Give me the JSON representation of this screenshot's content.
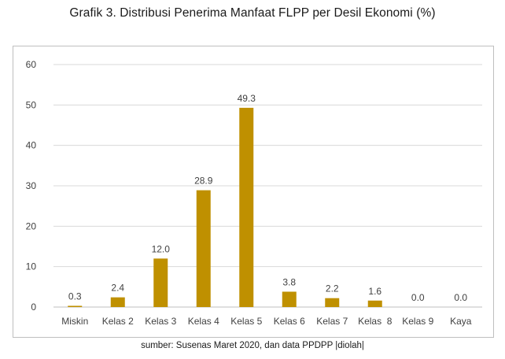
{
  "title": "Grafik 3. Distribusi Penerima Manfaat FLPP per Desil Ekonomi (%)",
  "source": "sumber: Susenas Maret 2020, dan data PPDPP |diolah|",
  "colors": {
    "bar": "#bf9000",
    "grid": "#d9d9d9",
    "axis": "#bfbfbf",
    "text": "#404040"
  },
  "chart_data": {
    "type": "bar",
    "title": "Grafik 3. Distribusi Penerima Manfaat FLPP per Desil Ekonomi (%)",
    "categories": [
      "Miskin",
      "Kelas 2",
      "Kelas 3",
      "Kelas 4",
      "Kelas 5",
      "Kelas 6",
      "Kelas 7",
      "Kelas  8",
      "Kelas 9",
      "Kaya"
    ],
    "values": [
      0.3,
      2.4,
      12.0,
      28.9,
      49.3,
      3.8,
      2.2,
      1.6,
      0.0,
      0.0
    ],
    "data_labels": [
      "0.3",
      "2.4",
      "12.0",
      "28.9",
      "49.3",
      "3.8",
      "2.2",
      "1.6",
      "0.0",
      "0.0"
    ],
    "yticks": [
      "0",
      "10",
      "20",
      "30",
      "40",
      "50",
      "60"
    ],
    "ylim": [
      0,
      60
    ],
    "xlabel": "",
    "ylabel": "",
    "grid": true,
    "legend": "none"
  }
}
